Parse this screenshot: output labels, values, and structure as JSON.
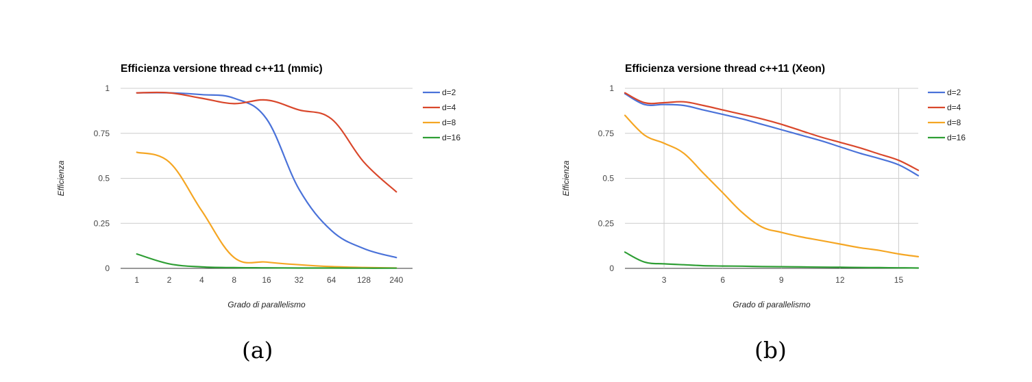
{
  "captions": {
    "a": "(a)",
    "b": "(b)"
  },
  "chart_data": [
    {
      "type": "line",
      "title": "Efficienza versione thread c++11 (mmic)",
      "xlabel": "Grado di parallelismo",
      "ylabel": "Efficienza",
      "x_axis": "categorical",
      "categories": [
        "1",
        "2",
        "4",
        "8",
        "16",
        "32",
        "64",
        "128",
        "240"
      ],
      "ylim": [
        0,
        1
      ],
      "yticks": [
        "0",
        "0.25",
        "0.5",
        "0.75",
        "1"
      ],
      "legend_position": "right",
      "grid": "horizontal",
      "series": [
        {
          "name": "d=2",
          "color": "#4a72d9",
          "values": [
            0.975,
            0.975,
            0.965,
            0.945,
            0.83,
            0.44,
            0.21,
            0.11,
            0.06
          ]
        },
        {
          "name": "d=4",
          "color": "#d9472b",
          "values": [
            0.975,
            0.975,
            0.945,
            0.915,
            0.935,
            0.88,
            0.83,
            0.59,
            0.425
          ]
        },
        {
          "name": "d=8",
          "color": "#f5a623",
          "values": [
            0.645,
            0.59,
            0.32,
            0.06,
            0.035,
            0.02,
            0.01,
            0.005,
            0.002
          ]
        },
        {
          "name": "d=16",
          "color": "#2e9e34",
          "values": [
            0.08,
            0.025,
            0.008,
            0.004,
            0.003,
            0.002,
            0.002,
            0.001,
            0.001
          ]
        }
      ]
    },
    {
      "type": "line",
      "title": "Efficienza versione thread c++11 (Xeon)",
      "xlabel": "Grado di parallelismo",
      "ylabel": "Efficienza",
      "x_axis": "numeric",
      "xlim": [
        1,
        16
      ],
      "xticks": [
        3,
        6,
        9,
        12,
        15
      ],
      "ylim": [
        0,
        1
      ],
      "yticks": [
        "0",
        "0.25",
        "0.5",
        "0.75",
        "1"
      ],
      "legend_position": "right",
      "grid": "both",
      "series": [
        {
          "name": "d=2",
          "color": "#4a72d9",
          "x": [
            1,
            2,
            3,
            4,
            5,
            6,
            7,
            8,
            9,
            10,
            11,
            12,
            13,
            14,
            15,
            16
          ],
          "values": [
            0.97,
            0.91,
            0.91,
            0.905,
            0.88,
            0.855,
            0.83,
            0.8,
            0.77,
            0.74,
            0.71,
            0.675,
            0.64,
            0.61,
            0.575,
            0.515
          ]
        },
        {
          "name": "d=4",
          "color": "#d9472b",
          "x": [
            1,
            2,
            3,
            4,
            5,
            6,
            7,
            8,
            9,
            10,
            11,
            12,
            13,
            14,
            15,
            16
          ],
          "values": [
            0.975,
            0.92,
            0.92,
            0.925,
            0.905,
            0.88,
            0.855,
            0.83,
            0.8,
            0.765,
            0.73,
            0.7,
            0.67,
            0.635,
            0.6,
            0.545
          ]
        },
        {
          "name": "d=8",
          "color": "#f5a623",
          "x": [
            1,
            2,
            3,
            4,
            5,
            6,
            7,
            8,
            9,
            10,
            11,
            12,
            13,
            14,
            15,
            16
          ],
          "values": [
            0.85,
            0.74,
            0.695,
            0.64,
            0.53,
            0.42,
            0.31,
            0.23,
            0.2,
            0.175,
            0.155,
            0.135,
            0.115,
            0.1,
            0.08,
            0.065
          ]
        },
        {
          "name": "d=16",
          "color": "#2e9e34",
          "x": [
            1,
            2,
            3,
            4,
            5,
            6,
            7,
            8,
            9,
            10,
            11,
            12,
            13,
            14,
            15,
            16
          ],
          "values": [
            0.09,
            0.035,
            0.025,
            0.02,
            0.015,
            0.013,
            0.012,
            0.01,
            0.009,
            0.008,
            0.007,
            0.006,
            0.005,
            0.004,
            0.003,
            0.002
          ]
        }
      ]
    }
  ]
}
